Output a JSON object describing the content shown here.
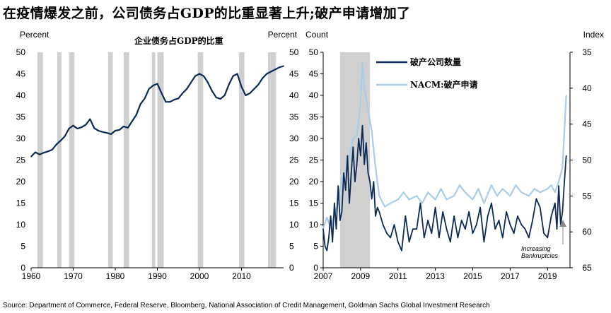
{
  "title": "在疫情爆发之前，公司债务占GDP的比重显著上升;破产申请增加了",
  "source": "Source: Department of Commerce, Federal Reserve, Bloomberg, National Association of Credit Management, Goldman Sachs Global Investment Research",
  "colors": {
    "dark_navy": "#0b2a55",
    "light_blue": "#a9cde9",
    "recession_gray": "#d0d0d0"
  },
  "chart_data": [
    {
      "type": "line",
      "title": "企业债务占GDP的比重",
      "ylabel_left": "Percent",
      "ylabel_right": "Percent",
      "xlim": [
        1960,
        2020
      ],
      "ylim": [
        0,
        50
      ],
      "x_ticks": [
        "1960",
        "1970",
        "1980",
        "1990",
        "2000",
        "2010"
      ],
      "y_ticks": [
        "0",
        "5",
        "10",
        "15",
        "20",
        "25",
        "30",
        "35",
        "40",
        "45",
        "50"
      ],
      "recessions": [
        [
          1960.3,
          1961.1
        ],
        [
          1969.9,
          1970.9
        ],
        [
          1973.9,
          1975.2
        ],
        [
          1980.0,
          1980.6
        ],
        [
          1981.5,
          1982.9
        ],
        [
          1990.6,
          1991.2
        ],
        [
          2001.2,
          2001.9
        ],
        [
          2007.9,
          2009.5
        ]
      ],
      "recession_bands_drawn": [
        [
          1961.5,
          1962.8
        ],
        [
          1966.2,
          1967.2
        ],
        [
          1969.0,
          1970.3
        ],
        [
          1978.3,
          1979.4
        ],
        [
          1982.0,
          1983.3
        ],
        [
          1988.7,
          1989.5
        ],
        [
          1990.0,
          1991.5
        ],
        [
          1999.6,
          2000.9
        ],
        [
          2009.4,
          2010.7
        ],
        [
          2016.3,
          2018.2
        ]
      ],
      "series": [
        {
          "color": "#0b2a55",
          "x": [
            1960,
            1961,
            1962,
            1963,
            1964,
            1965,
            1966,
            1967,
            1968,
            1969,
            1970,
            1971,
            1972,
            1973,
            1974,
            1975,
            1976,
            1977,
            1978,
            1979,
            1980,
            1981,
            1982,
            1983,
            1984,
            1985,
            1986,
            1987,
            1988,
            1989,
            1990,
            1991,
            1992,
            1993,
            1994,
            1995,
            1996,
            1997,
            1998,
            1999,
            2000,
            2001,
            2002,
            2003,
            2004,
            2005,
            2006,
            2007,
            2008,
            2009,
            2010,
            2011,
            2012,
            2013,
            2014,
            2015,
            2016,
            2017,
            2018,
            2019,
            2020
          ],
          "values": [
            25.8,
            26.8,
            26.3,
            26.7,
            27.0,
            27.4,
            28.6,
            29.5,
            30.5,
            32.3,
            33.0,
            32.3,
            32.6,
            33.2,
            34.5,
            32.4,
            31.8,
            31.5,
            31.3,
            31.0,
            31.8,
            32.0,
            32.8,
            32.5,
            34.0,
            35.5,
            38.0,
            39.3,
            41.5,
            42.3,
            42.7,
            40.5,
            38.5,
            38.5,
            39.0,
            39.3,
            40.5,
            41.5,
            43.0,
            44.5,
            45.0,
            44.5,
            43.0,
            41.0,
            39.5,
            39.2,
            40.0,
            42.5,
            44.5,
            45.0,
            42.0,
            40.0,
            40.5,
            41.5,
            42.5,
            44.0,
            45.0,
            45.5,
            46.0,
            46.5,
            46.8
          ]
        }
      ]
    },
    {
      "type": "line",
      "ylabel_left": "Count",
      "ylabel_right": "Index",
      "xlim": [
        2007,
        2020.2
      ],
      "ylim_left": [
        0,
        50
      ],
      "ylim_right_inverted": [
        35,
        65
      ],
      "x_ticks": [
        "2007",
        "2009",
        "2011",
        "2013",
        "2015",
        "2017",
        "2019"
      ],
      "y_ticks_left": [
        "0",
        "5",
        "10",
        "15",
        "20",
        "25",
        "30",
        "35",
        "40",
        "45",
        "50"
      ],
      "y_ticks_right": [
        "35",
        "40",
        "45",
        "50",
        "55",
        "60",
        "65"
      ],
      "recession_band": [
        2007.9,
        2009.5
      ],
      "annotation": "Increasing Bankruptcies",
      "series": [
        {
          "name": "破产公司数量",
          "color": "#0b2a55",
          "axis": "left",
          "x": [
            2007.0,
            2007.1,
            2007.2,
            2007.3,
            2007.4,
            2007.5,
            2007.6,
            2007.7,
            2007.8,
            2007.9,
            2008.0,
            2008.1,
            2008.2,
            2008.3,
            2008.4,
            2008.5,
            2008.6,
            2008.7,
            2008.8,
            2008.9,
            2009.0,
            2009.1,
            2009.2,
            2009.3,
            2009.4,
            2009.5,
            2009.6,
            2009.7,
            2009.8,
            2009.9,
            2010.0,
            2010.2,
            2010.4,
            2010.6,
            2010.8,
            2011.0,
            2011.2,
            2011.4,
            2011.6,
            2011.8,
            2012.0,
            2012.2,
            2012.4,
            2012.6,
            2012.8,
            2013.0,
            2013.2,
            2013.4,
            2013.6,
            2013.8,
            2014.0,
            2014.2,
            2014.4,
            2014.6,
            2014.8,
            2015.0,
            2015.2,
            2015.4,
            2015.6,
            2015.8,
            2016.0,
            2016.2,
            2016.4,
            2016.6,
            2016.8,
            2017.0,
            2017.2,
            2017.4,
            2017.6,
            2017.8,
            2018.0,
            2018.2,
            2018.4,
            2018.6,
            2018.8,
            2019.0,
            2019.2,
            2019.4,
            2019.5,
            2019.6,
            2019.7,
            2019.8,
            2019.9,
            2020.0
          ],
          "values": [
            9,
            5,
            4,
            7,
            12,
            6,
            15,
            9,
            19,
            11,
            13,
            22,
            18,
            26,
            15,
            22,
            28,
            20,
            24,
            30,
            26,
            33,
            24,
            29,
            22,
            20,
            16,
            20,
            12,
            14,
            13,
            10,
            8,
            7,
            10,
            6,
            4,
            12,
            6,
            9,
            9,
            15,
            7,
            11,
            8,
            14,
            7,
            13,
            9,
            6,
            12,
            7,
            11,
            9,
            13,
            8,
            10,
            14,
            6,
            12,
            15,
            9,
            11,
            7,
            13,
            10,
            8,
            12,
            10,
            9,
            7,
            11,
            16,
            14,
            8,
            7,
            12,
            15,
            9,
            19,
            10,
            13,
            20,
            26
          ]
        },
        {
          "name": "NACM:破产申请",
          "color": "#a9cde9",
          "axis": "right",
          "x": [
            2007.0,
            2007.2,
            2007.4,
            2007.6,
            2007.8,
            2008.0,
            2008.2,
            2008.4,
            2008.6,
            2008.8,
            2009.0,
            2009.1,
            2009.2,
            2009.4,
            2009.6,
            2009.8,
            2010.0,
            2010.3,
            2010.6,
            2011.0,
            2011.3,
            2011.6,
            2012.0,
            2012.3,
            2012.6,
            2013.0,
            2013.3,
            2013.6,
            2014.0,
            2014.3,
            2014.6,
            2015.0,
            2015.3,
            2015.6,
            2016.0,
            2016.3,
            2016.6,
            2017.0,
            2017.3,
            2017.6,
            2018.0,
            2018.3,
            2018.6,
            2019.0,
            2019.2,
            2019.4,
            2019.6,
            2019.8,
            2020.0
          ],
          "values": [
            59.5,
            58.0,
            59.5,
            57.5,
            56.0,
            52.5,
            51.5,
            49.5,
            47.0,
            46.5,
            42.0,
            36.5,
            40.0,
            43.0,
            46.0,
            51.0,
            55.0,
            56.5,
            56.0,
            55.5,
            54.5,
            55.5,
            55.0,
            56.0,
            54.5,
            55.5,
            54.0,
            55.5,
            55.0,
            53.5,
            54.5,
            55.5,
            54.0,
            56.0,
            53.5,
            55.0,
            54.0,
            55.0,
            53.5,
            54.5,
            55.0,
            54.0,
            54.5,
            54.0,
            53.5,
            54.5,
            53.0,
            51.0,
            41.0
          ]
        }
      ]
    }
  ]
}
